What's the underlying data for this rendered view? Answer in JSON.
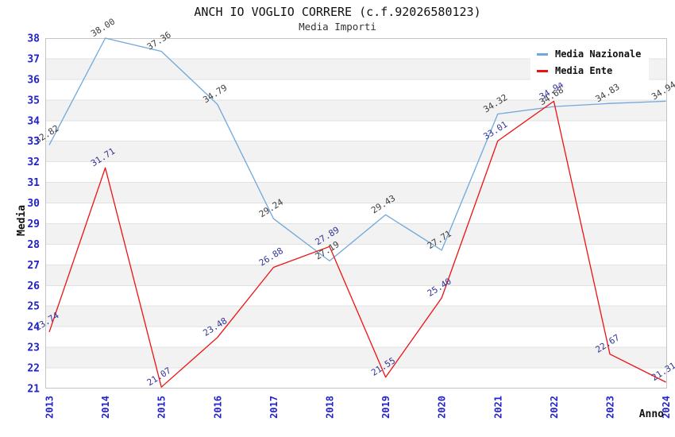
{
  "chart_data": {
    "type": "line",
    "title": "ANCH IO VOGLIO CORRERE (c.f.92026580123)",
    "subtitle": "Media Importi",
    "xlabel": "Anno",
    "ylabel": "Media",
    "x": [
      2013,
      2014,
      2015,
      2016,
      2017,
      2018,
      2019,
      2020,
      2021,
      2022,
      2023,
      2024
    ],
    "ylim": [
      21,
      38
    ],
    "y_tick_step": 1,
    "grid": "horizontal-with-alternating-bands",
    "legend_position": "top-right",
    "series": [
      {
        "name": "Media Nazionale",
        "color": "#6fa8dc",
        "label_color": "#3d3d3d",
        "values": [
          32.82,
          38.0,
          37.36,
          34.79,
          29.24,
          27.19,
          29.43,
          27.71,
          34.32,
          34.68,
          34.83,
          34.94
        ]
      },
      {
        "name": "Media Ente",
        "color": "#ee1111",
        "label_color": "#333399",
        "values": [
          23.74,
          31.71,
          21.07,
          23.48,
          26.88,
          27.89,
          21.55,
          25.4,
          33.01,
          34.94,
          22.67,
          21.31
        ]
      }
    ],
    "colors": {
      "band": "#f2f2f2",
      "gridline": "#e2e2e2",
      "border": "#c4c4c4",
      "tick_label": "#2222cc",
      "title": "#111111",
      "subtitle": "#333333",
      "legend_bg": "#ffffff"
    }
  }
}
